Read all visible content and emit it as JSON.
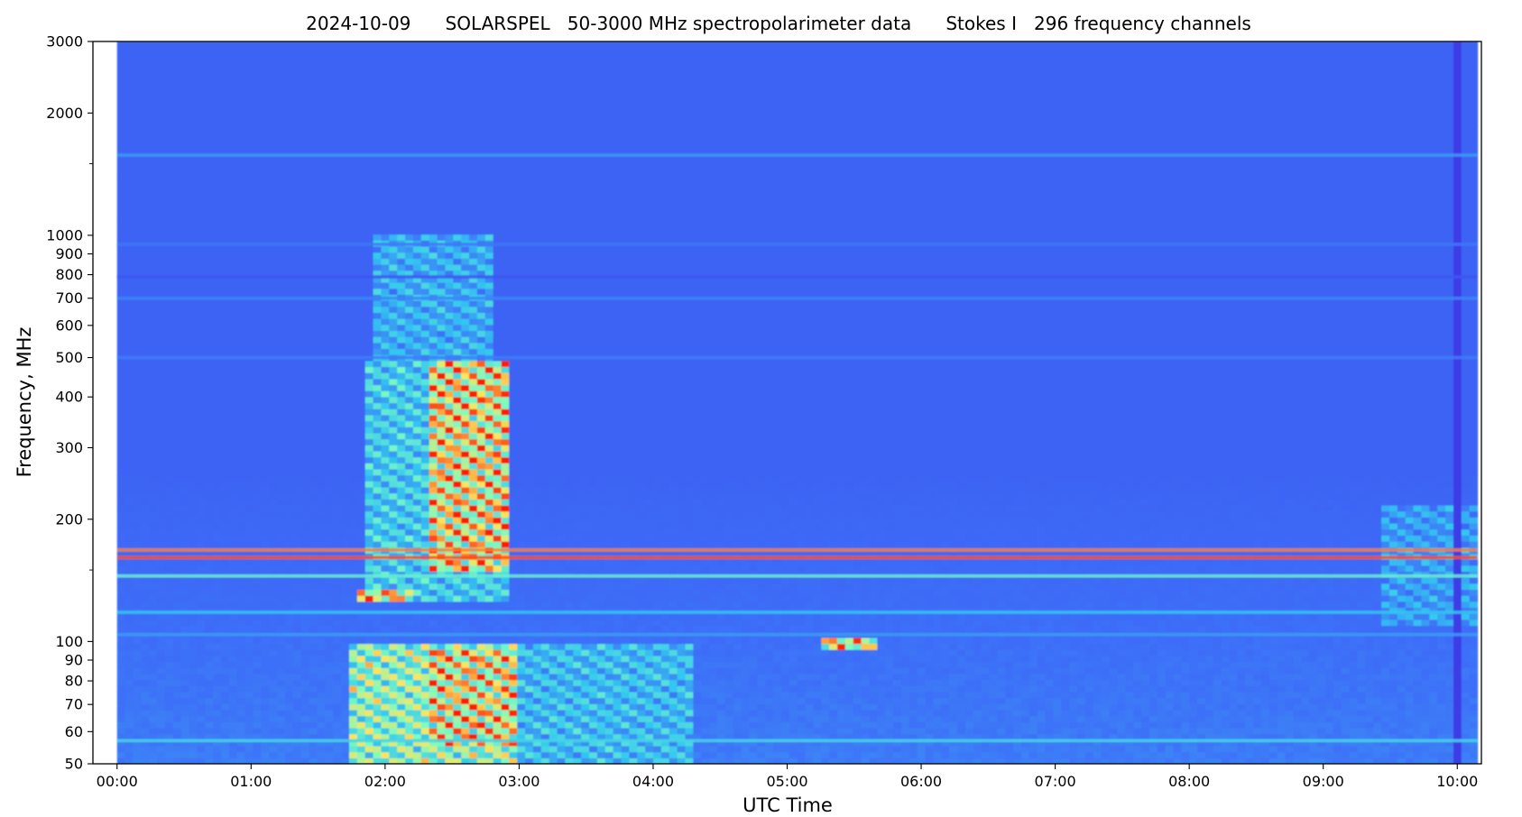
{
  "chart_data": {
    "type": "heatmap",
    "title": "2024-10-09      SOLARSPEL   50-3000 MHz spectropolarimeter data      Stokes I   296 frequency channels",
    "xlabel": "UTC Time",
    "ylabel": "Frequency, MHz",
    "x_unit": "hours UTC",
    "xlim": [
      -0.18,
      10.18
    ],
    "data_xlim": [
      0.0,
      10.15
    ],
    "ylim": [
      50,
      3000
    ],
    "y_scale": "log",
    "grid": false,
    "colormap": "rainbow",
    "colormap_stops": [
      "#3d3de6",
      "#3e6ff8",
      "#33c7f0",
      "#7dfbc2",
      "#ffe45a",
      "#ff1a00"
    ],
    "x_ticks": [
      {
        "value": 0,
        "label": "00:00"
      },
      {
        "value": 1,
        "label": "01:00"
      },
      {
        "value": 2,
        "label": "02:00"
      },
      {
        "value": 3,
        "label": "03:00"
      },
      {
        "value": 4,
        "label": "04:00"
      },
      {
        "value": 5,
        "label": "05:00"
      },
      {
        "value": 6,
        "label": "06:00"
      },
      {
        "value": 7,
        "label": "07:00"
      },
      {
        "value": 8,
        "label": "08:00"
      },
      {
        "value": 9,
        "label": "09:00"
      },
      {
        "value": 10,
        "label": "10:00"
      }
    ],
    "y_ticks_major": [
      {
        "value": 50,
        "label": "50"
      },
      {
        "value": 60,
        "label": "60"
      },
      {
        "value": 70,
        "label": "70"
      },
      {
        "value": 80,
        "label": "80"
      },
      {
        "value": 90,
        "label": "90"
      },
      {
        "value": 100,
        "label": "100"
      },
      {
        "value": 200,
        "label": "200"
      },
      {
        "value": 300,
        "label": "300"
      },
      {
        "value": 400,
        "label": "400"
      },
      {
        "value": 500,
        "label": "500"
      },
      {
        "value": 600,
        "label": "600"
      },
      {
        "value": 700,
        "label": "700"
      },
      {
        "value": 800,
        "label": "800"
      },
      {
        "value": 900,
        "label": "900"
      },
      {
        "value": 1000,
        "label": "1000"
      },
      {
        "value": 2000,
        "label": "2000"
      },
      {
        "value": 3000,
        "label": "3000"
      }
    ],
    "y_ticks_minor": [
      150,
      1500
    ],
    "background_level": 0.15,
    "rfi_bands": [
      {
        "freq": 1575,
        "level": 0.3
      },
      {
        "freq": 950,
        "level": 0.22
      },
      {
        "freq": 790,
        "level": 0.1
      },
      {
        "freq": 700,
        "level": 0.25
      },
      {
        "freq": 500,
        "level": 0.23
      },
      {
        "freq": 168,
        "level": 0.9
      },
      {
        "freq": 161,
        "level": 0.95
      },
      {
        "freq": 145,
        "level": 0.55
      },
      {
        "freq": 118,
        "level": 0.4
      },
      {
        "freq": 104,
        "level": 0.3
      },
      {
        "freq": 57,
        "level": 0.45
      }
    ],
    "emission_regions": [
      {
        "t_start": 1.75,
        "t_end": 3.0,
        "f_low": 50,
        "f_high": 100,
        "level": 0.8
      },
      {
        "t_start": 2.3,
        "t_end": 3.0,
        "f_low": 55,
        "f_high": 95,
        "level": 1.0
      },
      {
        "t_start": 1.85,
        "t_end": 2.9,
        "f_low": 125,
        "f_high": 500,
        "level": 0.55
      },
      {
        "t_start": 2.35,
        "t_end": 2.95,
        "f_low": 150,
        "f_high": 500,
        "level": 1.0
      },
      {
        "t_start": 1.8,
        "t_end": 2.2,
        "f_low": 125,
        "f_high": 135,
        "level": 1.0
      },
      {
        "t_start": 1.9,
        "t_end": 2.8,
        "f_low": 500,
        "f_high": 1000,
        "level": 0.45
      },
      {
        "t_start": 3.0,
        "t_end": 4.3,
        "f_low": 50,
        "f_high": 100,
        "level": 0.5
      },
      {
        "t_start": 5.25,
        "t_end": 5.7,
        "f_low": 97,
        "f_high": 102,
        "level": 0.95
      },
      {
        "t_start": 9.45,
        "t_end": 10.15,
        "f_low": 110,
        "f_high": 220,
        "level": 0.4
      }
    ],
    "dropouts": [
      {
        "t_start": 10.0,
        "t_end": 10.05,
        "f_low": 50,
        "f_high": 3000
      }
    ]
  }
}
